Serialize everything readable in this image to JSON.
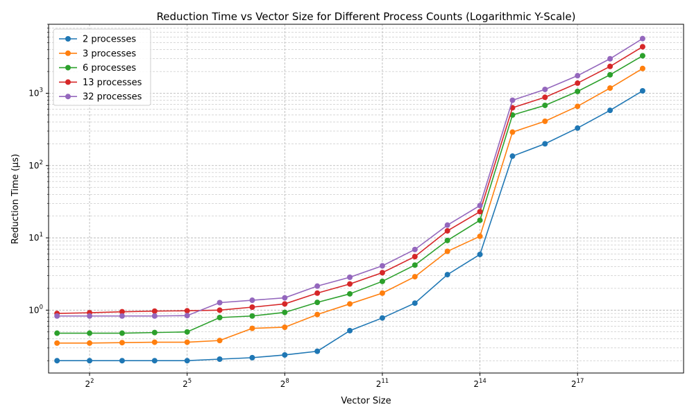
{
  "chart_data": {
    "type": "line",
    "title": "Reduction Time vs Vector Size for Different Process Counts (Logarithmic Y-Scale)",
    "xlabel": "Vector Size",
    "ylabel": "Reduction Time (µs)",
    "x_scale": "log2",
    "y_scale": "log10",
    "xlim": [
      0.74,
      20.26
    ],
    "ylim": [
      0.135,
      9000
    ],
    "x_ticks": [
      {
        "value": 2,
        "base": "2",
        "exp": "2"
      },
      {
        "value": 5,
        "base": "2",
        "exp": "5"
      },
      {
        "value": 8,
        "base": "2",
        "exp": "8"
      },
      {
        "value": 11,
        "base": "2",
        "exp": "11"
      },
      {
        "value": 14,
        "base": "2",
        "exp": "14"
      },
      {
        "value": 17,
        "base": "2",
        "exp": "17"
      }
    ],
    "y_ticks": [
      {
        "value": 1,
        "base": "10",
        "exp": "0"
      },
      {
        "value": 10,
        "base": "10",
        "exp": "1"
      },
      {
        "value": 100,
        "base": "10",
        "exp": "2"
      },
      {
        "value": 1000,
        "base": "10",
        "exp": "3"
      }
    ],
    "grid": "major and minor, dashed",
    "legend_position": "top-left",
    "x": [
      1,
      2,
      3,
      4,
      5,
      6,
      7,
      8,
      9,
      10,
      11,
      12,
      13,
      14,
      15,
      16,
      17,
      18,
      19
    ],
    "series": [
      {
        "name": "2 processes",
        "color": "#1f77b4",
        "values": [
          0.2,
          0.2,
          0.2,
          0.2,
          0.2,
          0.21,
          0.22,
          0.24,
          0.27,
          0.52,
          0.78,
          1.25,
          3.1,
          5.9,
          135,
          200,
          330,
          580,
          1080
        ]
      },
      {
        "name": "3 processes",
        "color": "#ff7f0e",
        "values": [
          0.35,
          0.35,
          0.355,
          0.36,
          0.36,
          0.38,
          0.56,
          0.58,
          0.87,
          1.22,
          1.72,
          2.9,
          6.5,
          10.5,
          290,
          410,
          660,
          1180,
          2200
        ]
      },
      {
        "name": "6 processes",
        "color": "#2ca02c",
        "values": [
          0.48,
          0.48,
          0.48,
          0.49,
          0.5,
          0.79,
          0.83,
          0.93,
          1.28,
          1.68,
          2.5,
          4.2,
          9.2,
          17.5,
          500,
          680,
          1060,
          1800,
          3300
        ]
      },
      {
        "name": "13 processes",
        "color": "#d62728",
        "values": [
          0.9,
          0.92,
          0.95,
          0.97,
          0.98,
          1.0,
          1.1,
          1.22,
          1.72,
          2.3,
          3.3,
          5.5,
          12.5,
          23,
          630,
          880,
          1380,
          2350,
          4400
        ]
      },
      {
        "name": "32 processes",
        "color": "#9467bd",
        "values": [
          0.83,
          0.83,
          0.83,
          0.83,
          0.84,
          1.27,
          1.37,
          1.48,
          2.15,
          2.85,
          4.1,
          6.9,
          15,
          28,
          800,
          1130,
          1750,
          3000,
          5700
        ]
      }
    ]
  }
}
